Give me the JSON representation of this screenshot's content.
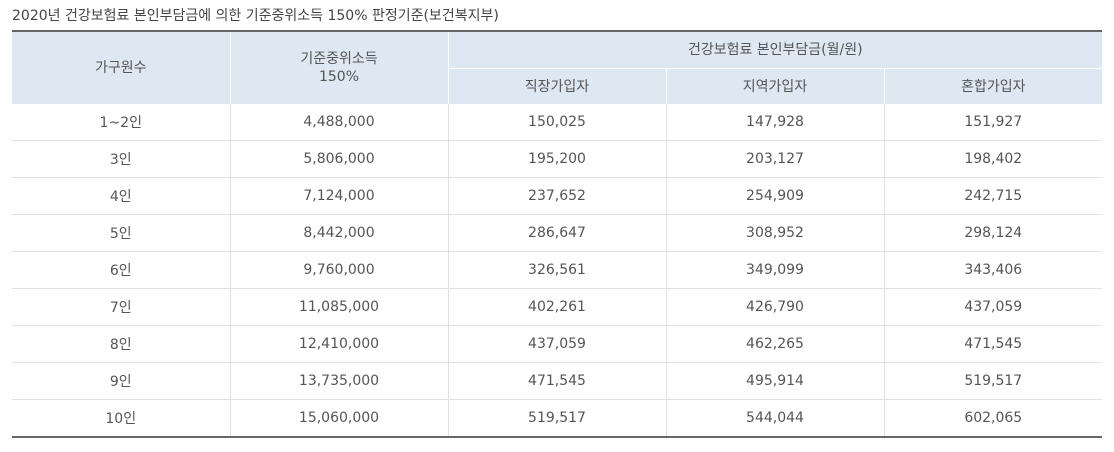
{
  "caption": "2020년 건강보험료 본인부담금에 의한 기준중위소득 150% 판정기준(보건복지부)",
  "headers": {
    "household": "가구원수",
    "median_income_line1": "기준중위소득",
    "median_income_line2": "150%",
    "premium_group": "건강보험료 본인부담금(월/원)",
    "employee": "직장가입자",
    "regional": "지역가입자",
    "mixed": "혼합가입자"
  },
  "rows": [
    {
      "household": "1~2인",
      "income": "4,488,000",
      "employee": "150,025",
      "regional": "147,928",
      "mixed": "151,927"
    },
    {
      "household": "3인",
      "income": "5,806,000",
      "employee": "195,200",
      "regional": "203,127",
      "mixed": "198,402"
    },
    {
      "household": "4인",
      "income": "7,124,000",
      "employee": "237,652",
      "regional": "254,909",
      "mixed": "242,715"
    },
    {
      "household": "5인",
      "income": "8,442,000",
      "employee": "286,647",
      "regional": "308,952",
      "mixed": "298,124"
    },
    {
      "household": "6인",
      "income": "9,760,000",
      "employee": "326,561",
      "regional": "349,099",
      "mixed": "343,406"
    },
    {
      "household": "7인",
      "income": "11,085,000",
      "employee": "402,261",
      "regional": "426,790",
      "mixed": "437,059"
    },
    {
      "household": "8인",
      "income": "12,410,000",
      "employee": "437,059",
      "regional": "462,265",
      "mixed": "471,545"
    },
    {
      "household": "9인",
      "income": "13,735,000",
      "employee": "471,545",
      "regional": "495,914",
      "mixed": "519,517"
    },
    {
      "household": "10인",
      "income": "15,060,000",
      "employee": "519,517",
      "regional": "544,044",
      "mixed": "602,065"
    }
  ]
}
